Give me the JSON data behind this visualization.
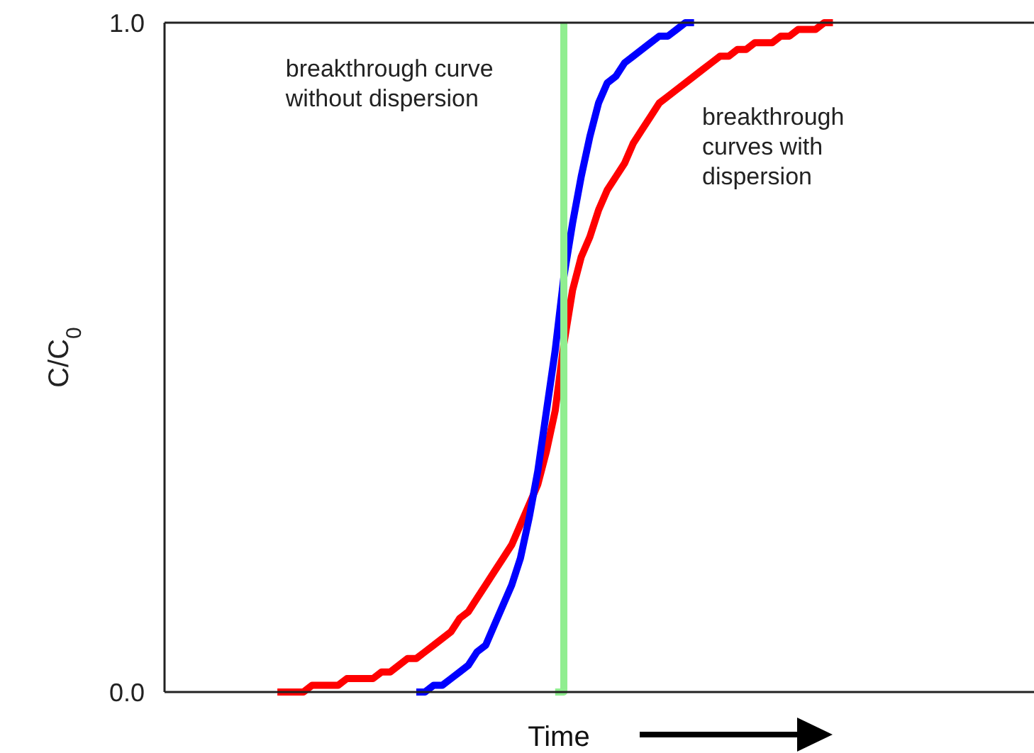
{
  "chart_data": {
    "type": "line",
    "xlabel": "Time",
    "ylabel": "C/C$_{0}$",
    "ylim": [
      0,
      1
    ],
    "yticks": [
      {
        "value": 0,
        "label": "0.0"
      },
      {
        "value": 1,
        "label": "1.0"
      }
    ],
    "tick_labels": "y",
    "marker": "none",
    "line_style": "solid",
    "categories": [
      null,
      null,
      null,
      null,
      null,
      null,
      null,
      null,
      null,
      null,
      null,
      null,
      null,
      null,
      null,
      null,
      null,
      null,
      null,
      null,
      null,
      null,
      null,
      null,
      null,
      null,
      null,
      null,
      null,
      null,
      null,
      null,
      null,
      null,
      null,
      null,
      null,
      null,
      null,
      null,
      null,
      null,
      null,
      null,
      null,
      null,
      null,
      null,
      null,
      null,
      null,
      null,
      null,
      null,
      null,
      null,
      null,
      null,
      null,
      null,
      null,
      null,
      null,
      null,
      null,
      null,
      null,
      null,
      null,
      null,
      null,
      null,
      null,
      null,
      null,
      null,
      null,
      null,
      null,
      null,
      null,
      null,
      null,
      null,
      null,
      null,
      null,
      null,
      null,
      null,
      null,
      null,
      null,
      null,
      null,
      null,
      null,
      null,
      null,
      null,
      null
    ],
    "series": [
      {
        "color": "#ff0000",
        "values": [
          null,
          null,
          null,
          null,
          null,
          null,
          null,
          null,
          null,
          null,
          null,
          null,
          null,
          0,
          0,
          0,
          0,
          0.01,
          0.01,
          0.01,
          0.01,
          0.02,
          0.02,
          0.02,
          0.02,
          0.03,
          0.03,
          0.04,
          0.05,
          0.05,
          0.06,
          0.07,
          0.08,
          0.09,
          0.11,
          0.12,
          0.14,
          0.16,
          0.18,
          0.2,
          0.22,
          0.25,
          0.28,
          0.31,
          0.36,
          0.42,
          0.52,
          0.6,
          0.65,
          0.68,
          0.72,
          0.75,
          0.77,
          0.79,
          0.82,
          0.84,
          0.86,
          0.88,
          0.89,
          0.9,
          0.91,
          0.92,
          0.93,
          0.94,
          0.95,
          0.95,
          0.96,
          0.96,
          0.97,
          0.97,
          0.97,
          0.98,
          0.98,
          0.99,
          0.99,
          0.99,
          1,
          1,
          null,
          null,
          null,
          null,
          null,
          null,
          null,
          null,
          null,
          null,
          null,
          null,
          null,
          null,
          null,
          null,
          null,
          null,
          null,
          null,
          null,
          null,
          null
        ]
      },
      {
        "color": "#0000ff",
        "values": [
          null,
          null,
          null,
          null,
          null,
          null,
          null,
          null,
          null,
          null,
          null,
          null,
          null,
          null,
          null,
          null,
          null,
          null,
          null,
          null,
          null,
          null,
          null,
          null,
          null,
          null,
          null,
          null,
          null,
          0,
          0,
          0.01,
          0.01,
          0.02,
          0.03,
          0.04,
          0.06,
          0.07,
          0.1,
          0.13,
          0.16,
          0.2,
          0.26,
          0.33,
          0.42,
          0.51,
          0.62,
          0.7,
          0.77,
          0.83,
          0.88,
          0.91,
          0.92,
          0.94,
          0.95,
          0.96,
          0.97,
          0.98,
          0.98,
          0.99,
          1,
          1,
          null,
          null,
          null,
          null,
          null,
          null,
          null,
          null,
          null,
          null,
          null,
          null,
          null,
          null,
          null,
          null,
          null,
          null,
          null,
          null,
          null,
          null,
          null,
          null,
          null,
          null,
          null,
          null,
          null,
          null,
          null,
          null,
          null,
          null,
          null,
          null,
          null,
          null,
          null
        ]
      },
      {
        "type": "step",
        "name": "breakthrough curve without dispersion",
        "color": "#90ee90",
        "values": [
          null,
          null,
          null,
          null,
          null,
          null,
          null,
          null,
          null,
          null,
          null,
          null,
          null,
          null,
          null,
          null,
          null,
          null,
          null,
          null,
          null,
          null,
          null,
          null,
          null,
          null,
          null,
          null,
          null,
          null,
          null,
          null,
          null,
          null,
          null,
          null,
          null,
          null,
          null,
          null,
          null,
          null,
          null,
          null,
          null,
          0,
          1,
          null,
          null,
          null,
          null,
          null,
          null,
          null,
          null,
          null,
          null,
          null,
          null,
          null,
          null,
          null,
          null,
          null,
          null,
          null,
          null,
          null,
          null,
          null,
          null,
          null,
          null,
          null,
          null,
          null,
          null,
          null,
          null,
          null,
          null,
          null,
          null,
          null,
          null,
          null,
          null,
          null,
          null,
          null,
          null,
          null,
          null,
          null,
          null,
          null,
          null,
          null,
          null,
          null,
          null
        ]
      }
    ],
    "annotations": [
      "breakthrough curves with dispersion"
    ]
  }
}
